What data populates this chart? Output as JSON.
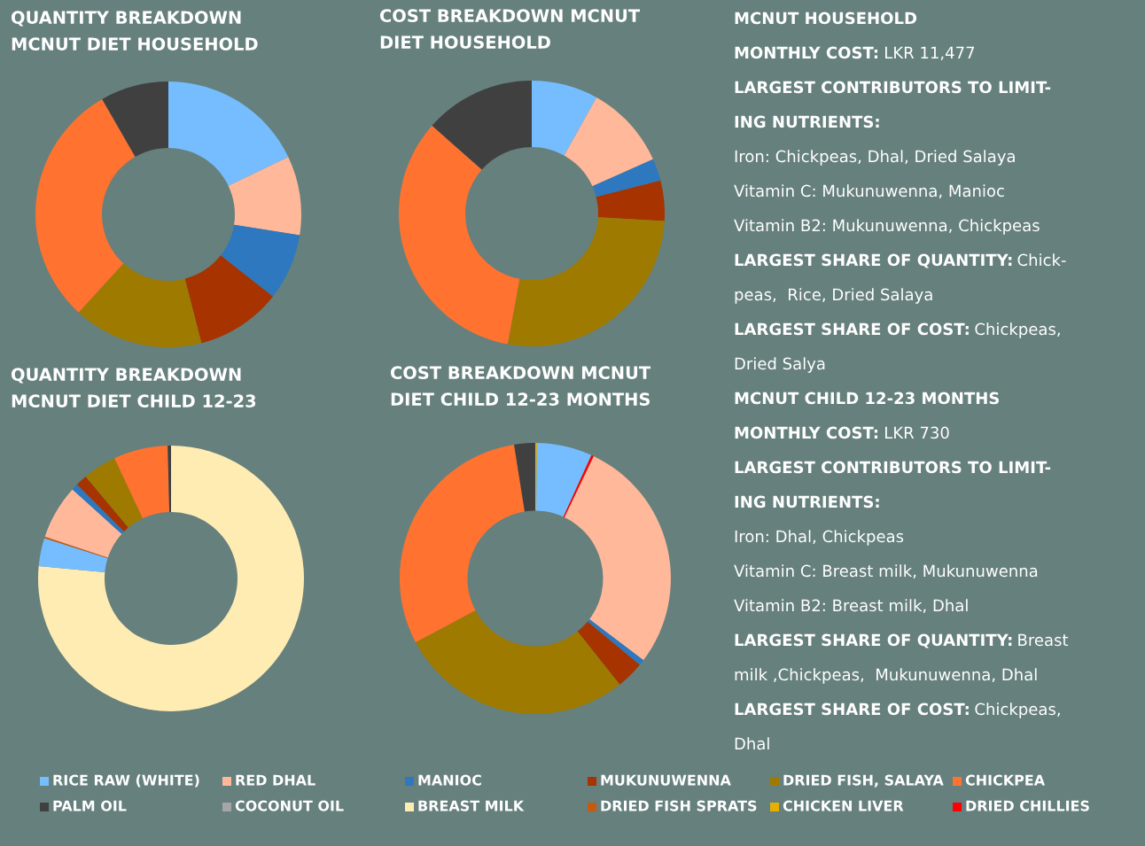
{
  "chart_data": [
    {
      "type": "donut",
      "title": "QUANTITY BREAKDOWN\nMCNUT DIET HOUSEHOLD",
      "legend": "bottom",
      "categories": [
        "RICE RAW (WHITE)",
        "RED DHAL",
        "MANIOC",
        "MUKUNUWENNA",
        "DRIED FISH, SALAYA",
        "CHICKPEA",
        "PALM OIL",
        "COCONUT OIL"
      ],
      "values": [
        17.9,
        9.6,
        8.1,
        10.4,
        15.8,
        29.9,
        8.3,
        0
      ],
      "colors": [
        "#75bdfe",
        "#ffb89a",
        "#2e78c0",
        "#a63300",
        "#9e7a00",
        "#ff7230",
        "#404040",
        "#a6a6a6"
      ]
    },
    {
      "type": "donut",
      "title": "COST BREAKDOWN MCNUT\nDIET HOUSEHOLD",
      "categories": [
        null,
        null,
        null,
        null,
        null,
        null,
        null
      ],
      "values": [
        8.1,
        10.2,
        2.7,
        4.9,
        27.0,
        33.6,
        13.5
      ],
      "colors": [
        "#75bdfe",
        "#ffb89a",
        "#2e78c0",
        "#a63300",
        "#9e7a00",
        "#ff7230",
        "#404040"
      ]
    },
    {
      "type": "donut",
      "title": "QUANTITY BREAKDOWN\nMCNUT DIET CHILD 12-23",
      "legend": "bottom",
      "categories": [
        "BREAST MILK",
        null,
        "DRIED FISH SPRATS",
        null,
        null,
        null,
        null,
        null,
        null
      ],
      "values": [
        76.5,
        3.4,
        0.2,
        6.6,
        0.8,
        1.4,
        4.1,
        6.6,
        0.4
      ],
      "colors": [
        "#ffecb3",
        "#75bdfe",
        "#c55a11",
        "#ffb89a",
        "#2e78c0",
        "#a63300",
        "#9e7a00",
        "#ff7230",
        "#404040"
      ]
    },
    {
      "type": "donut",
      "title": "COST BREAKDOWN MCNUT\nDIET CHILD 12-23 MONTHS",
      "legend": "bottom",
      "categories": [
        "CHICKEN LIVER",
        null,
        "DRIED CHILLIES",
        null,
        null,
        null,
        null,
        null,
        null
      ],
      "values": [
        0.2,
        6.6,
        0.3,
        28.2,
        0.7,
        3.3,
        27.9,
        30.3,
        2.5
      ],
      "colors": [
        "#e6b000",
        "#75bdfe",
        "#ff0000",
        "#ffb89a",
        "#2e78c0",
        "#a63300",
        "#9e7a00",
        "#ff7230",
        "#404040"
      ]
    },
    {
      "type": "other",
      "annotations": [
        "MCNUT HOUSEHOLD",
        "MONTHLY COST: LKR 11,477",
        "LARGEST CONTRIBUTORS TO LIMIT-",
        "ING NUTRIENTS:",
        "Iron: Chickpeas, Dhal, Dried Salaya",
        "Vitamin C: Mukunuwenna, Manioc",
        "Vitamin B2: Mukunuwenna, Chickpeas",
        "LARGEST SHARE OF QUANTITY: Chick-",
        "peas,  Rice, Dried Salaya",
        "LARGEST SHARE OF COST: Chickpeas,",
        "Dried Salya",
        "MCNUT CHILD 12-23 MONTHS",
        "MONTHLY COST: LKR 730",
        "LARGEST CONTRIBUTORS TO LIMIT-",
        "ING NUTRIENTS:",
        "Iron: Dhal, Chickpeas",
        "Vitamin C: Breast milk, Mukunuwenna",
        "Vitamin B2: Breast milk, Dhal",
        "LARGEST SHARE OF QUANTITY: Breast",
        "milk ,Chickpeas,  Mukunuwenna, Dhal",
        "LARGEST SHARE OF COST: Chickpeas,",
        "Dhal"
      ]
    }
  ]
}
